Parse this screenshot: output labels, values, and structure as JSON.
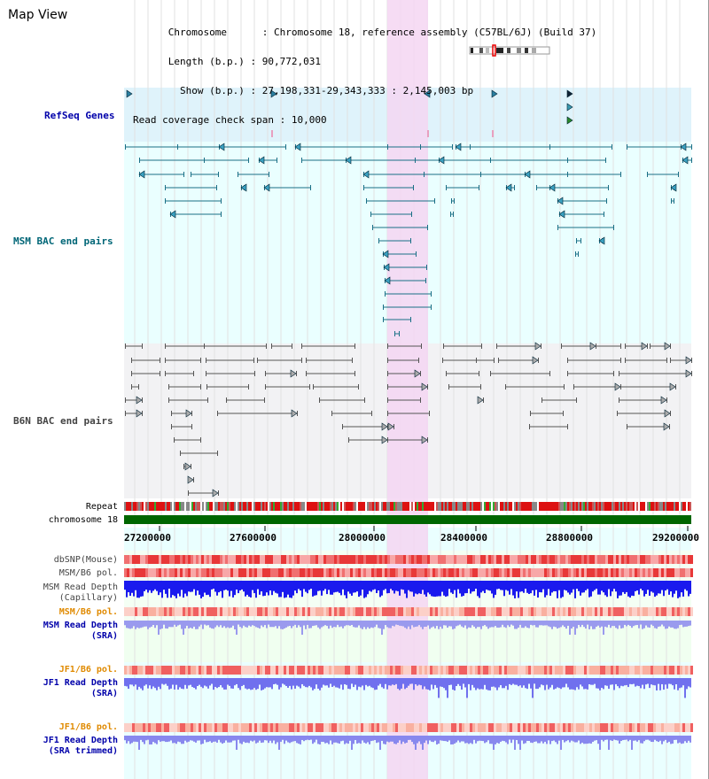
{
  "view": {
    "title": "Map View"
  },
  "header": {
    "chromosome_label": "Chromosome",
    "chromosome_value": "Chromosome 18, reference assembly (C57BL/6J) (Build 37)",
    "length_label": "Length (b.p.)",
    "length_value": "90,772,031",
    "show_label": "Show (b.p.)",
    "show_value": "27,198,331-29,343,333 : 2,145,003 bp",
    "span_label": "Read coverage check span",
    "span_value": "10,000"
  },
  "tracks": {
    "refseq": "RefSeq Genes",
    "msm_bac": "MSM BAC end pairs",
    "b6n_bac": "B6N BAC end pairs",
    "repeat": "Repeat",
    "chromosome": "chromosome 18",
    "dbsnp": "dbSNP(Mouse)",
    "msm_b6_pol_1": "MSM/B6 pol.",
    "msm_depth_cap_1": "MSM Read Depth",
    "msm_depth_cap_2": "(Capillary)",
    "msm_b6_pol_2": "MSM/B6 pol.",
    "msm_depth_sra_1": "MSM Read Depth",
    "msm_depth_sra_2": "(SRA)",
    "jf1_b6_pol_1": "JF1/B6 pol.",
    "jf1_depth_sra_1": "JF1 Read Depth",
    "jf1_depth_sra_2": "(SRA)",
    "jf1_b6_pol_2": "JF1/B6 pol.",
    "jf1_depth_trim_1": "JF1 Read Depth",
    "jf1_depth_trim_2": "(SRA trimmed)"
  },
  "axis": {
    "ticks": [
      "27200000",
      "27600000",
      "28000000",
      "28400000",
      "28800000",
      "29200000"
    ]
  },
  "colors": {
    "refseq_bg": "#dff3fb",
    "msm_bg": "#eaffff",
    "b6n_bg": "#f2f2f4",
    "highlight": "#f5d6f2",
    "refseq_label": "#0000aa",
    "msm_label": "#006677",
    "b6n_label": "#444444",
    "orange_label": "#e08a00",
    "blue_label": "#0000aa",
    "chromosome_bar": "#006600"
  }
}
